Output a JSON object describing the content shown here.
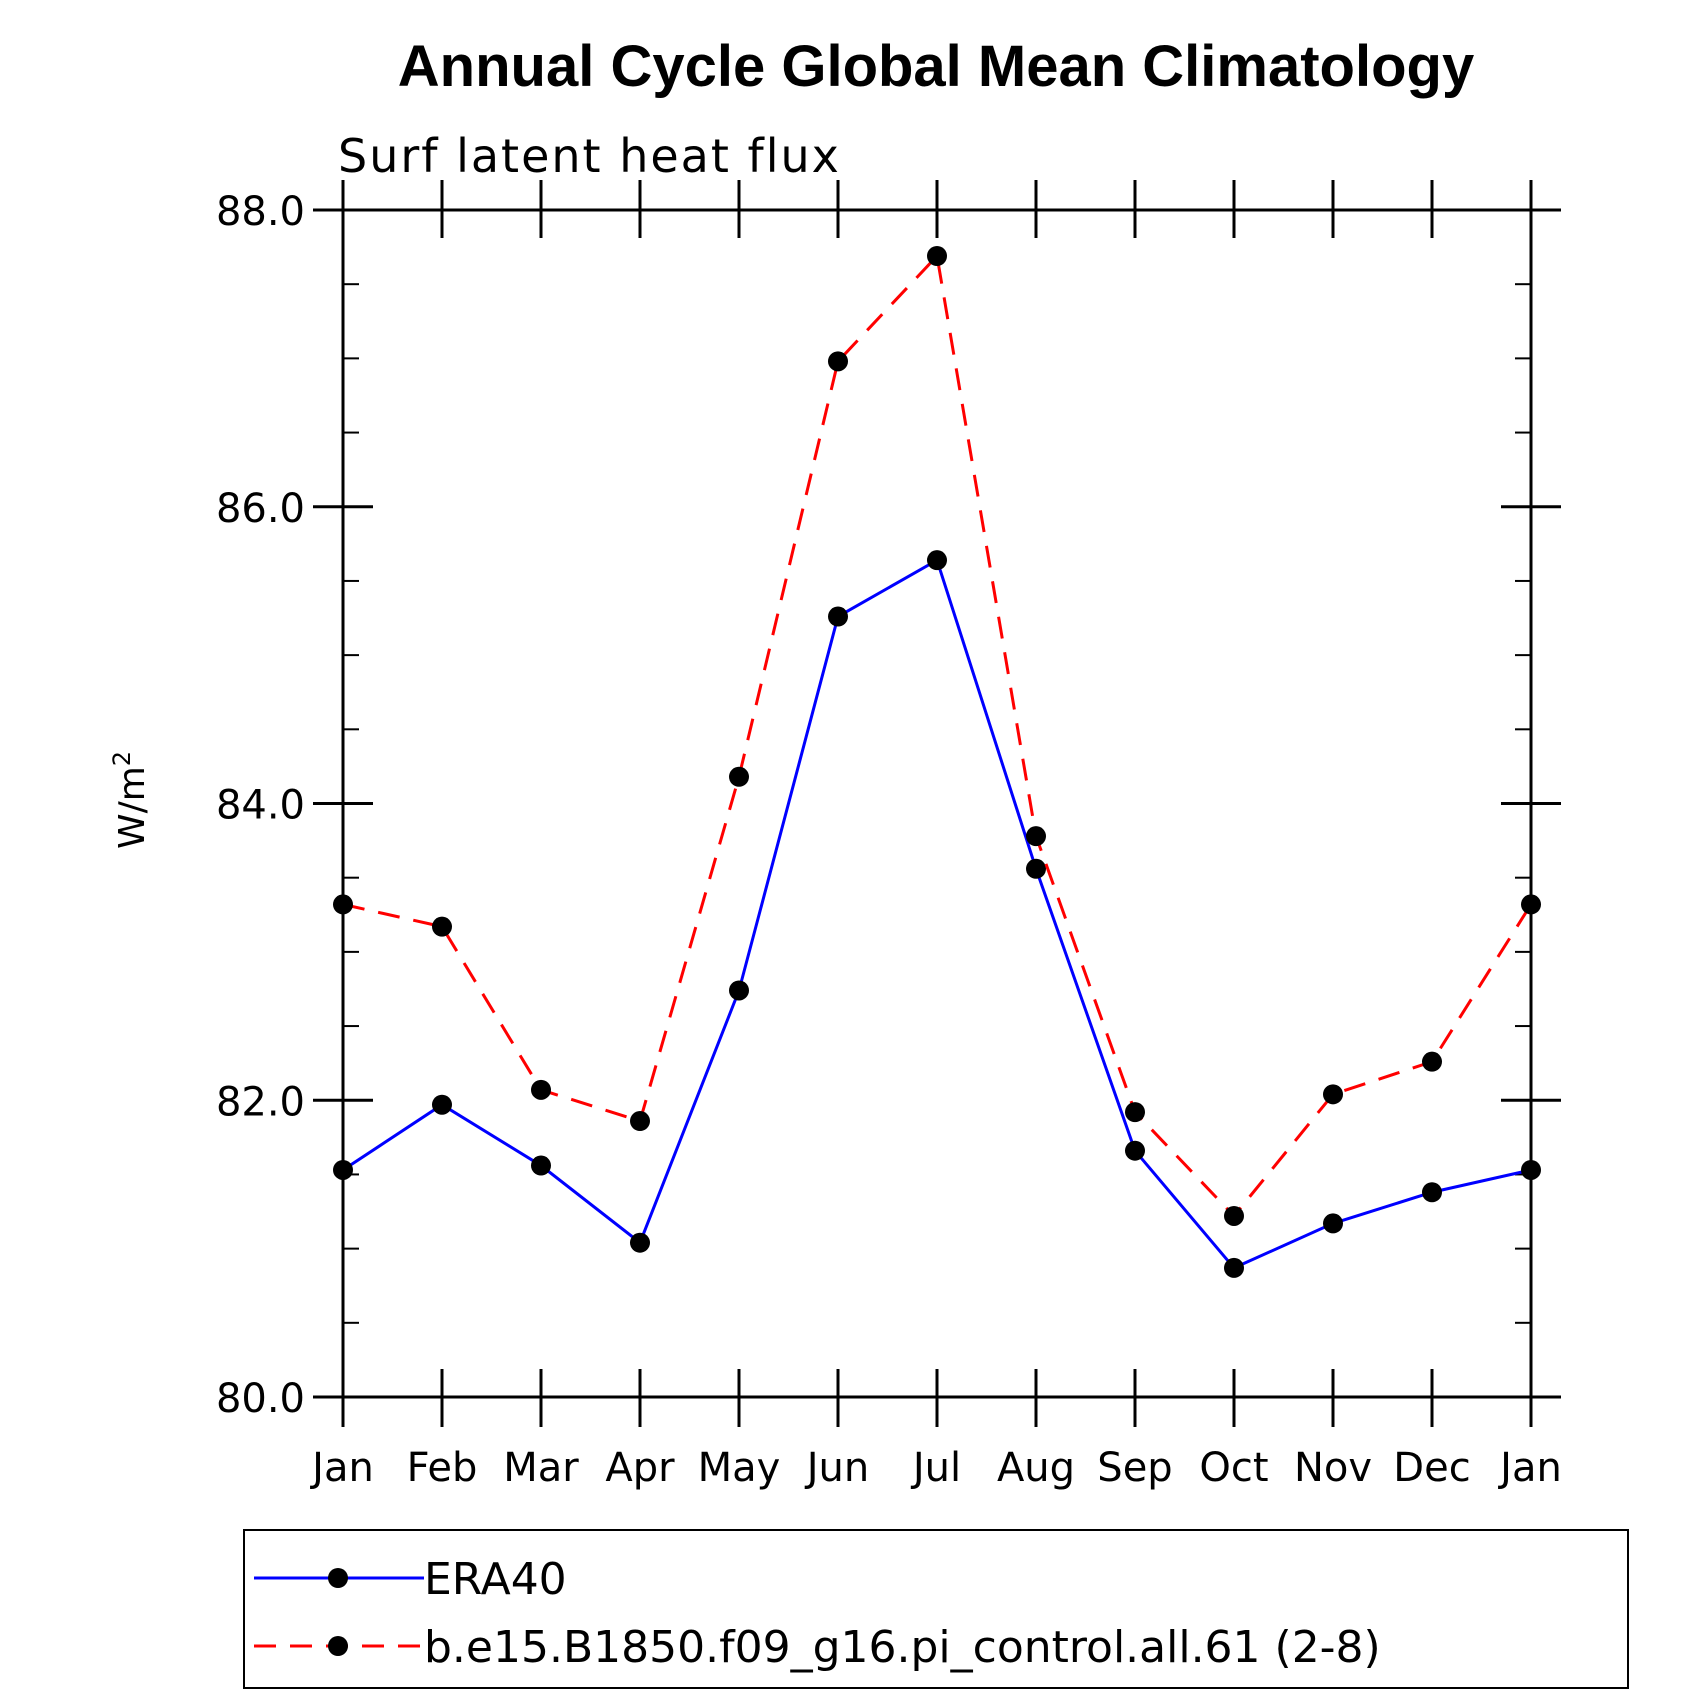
{
  "chart_data": {
    "type": "line",
    "title": "Annual Cycle Global Mean Climatology",
    "subtitle": "Surf latent heat flux",
    "xlabel": "",
    "ylabel": "W/m",
    "ylabel_superscript": "2",
    "categories": [
      "Jan",
      "Feb",
      "Mar",
      "Apr",
      "May",
      "Jun",
      "Jul",
      "Aug",
      "Sep",
      "Oct",
      "Nov",
      "Dec",
      "Jan"
    ],
    "ylim": [
      80.0,
      88.0
    ],
    "y_ticks": [
      "80.0",
      "82.0",
      "84.0",
      "86.0",
      "88.0"
    ],
    "y_minor_step": 0.5,
    "grid": false,
    "legend_position": "bottom",
    "series": [
      {
        "name": "ERA40",
        "color": "#0000ff",
        "style": "solid",
        "marker": "filled-circle",
        "values": [
          81.53,
          81.97,
          81.56,
          81.04,
          82.74,
          85.26,
          85.64,
          83.56,
          81.66,
          80.87,
          81.17,
          81.38,
          81.53
        ]
      },
      {
        "name": "b.e15.B1850.f09_g16.pi_control.all.61 (2-8)",
        "color": "#ff0000",
        "style": "dashed",
        "marker": "filled-circle",
        "values": [
          83.32,
          83.17,
          82.07,
          81.86,
          84.18,
          86.98,
          87.69,
          83.78,
          81.92,
          81.22,
          82.04,
          82.26,
          83.32
        ]
      }
    ]
  }
}
